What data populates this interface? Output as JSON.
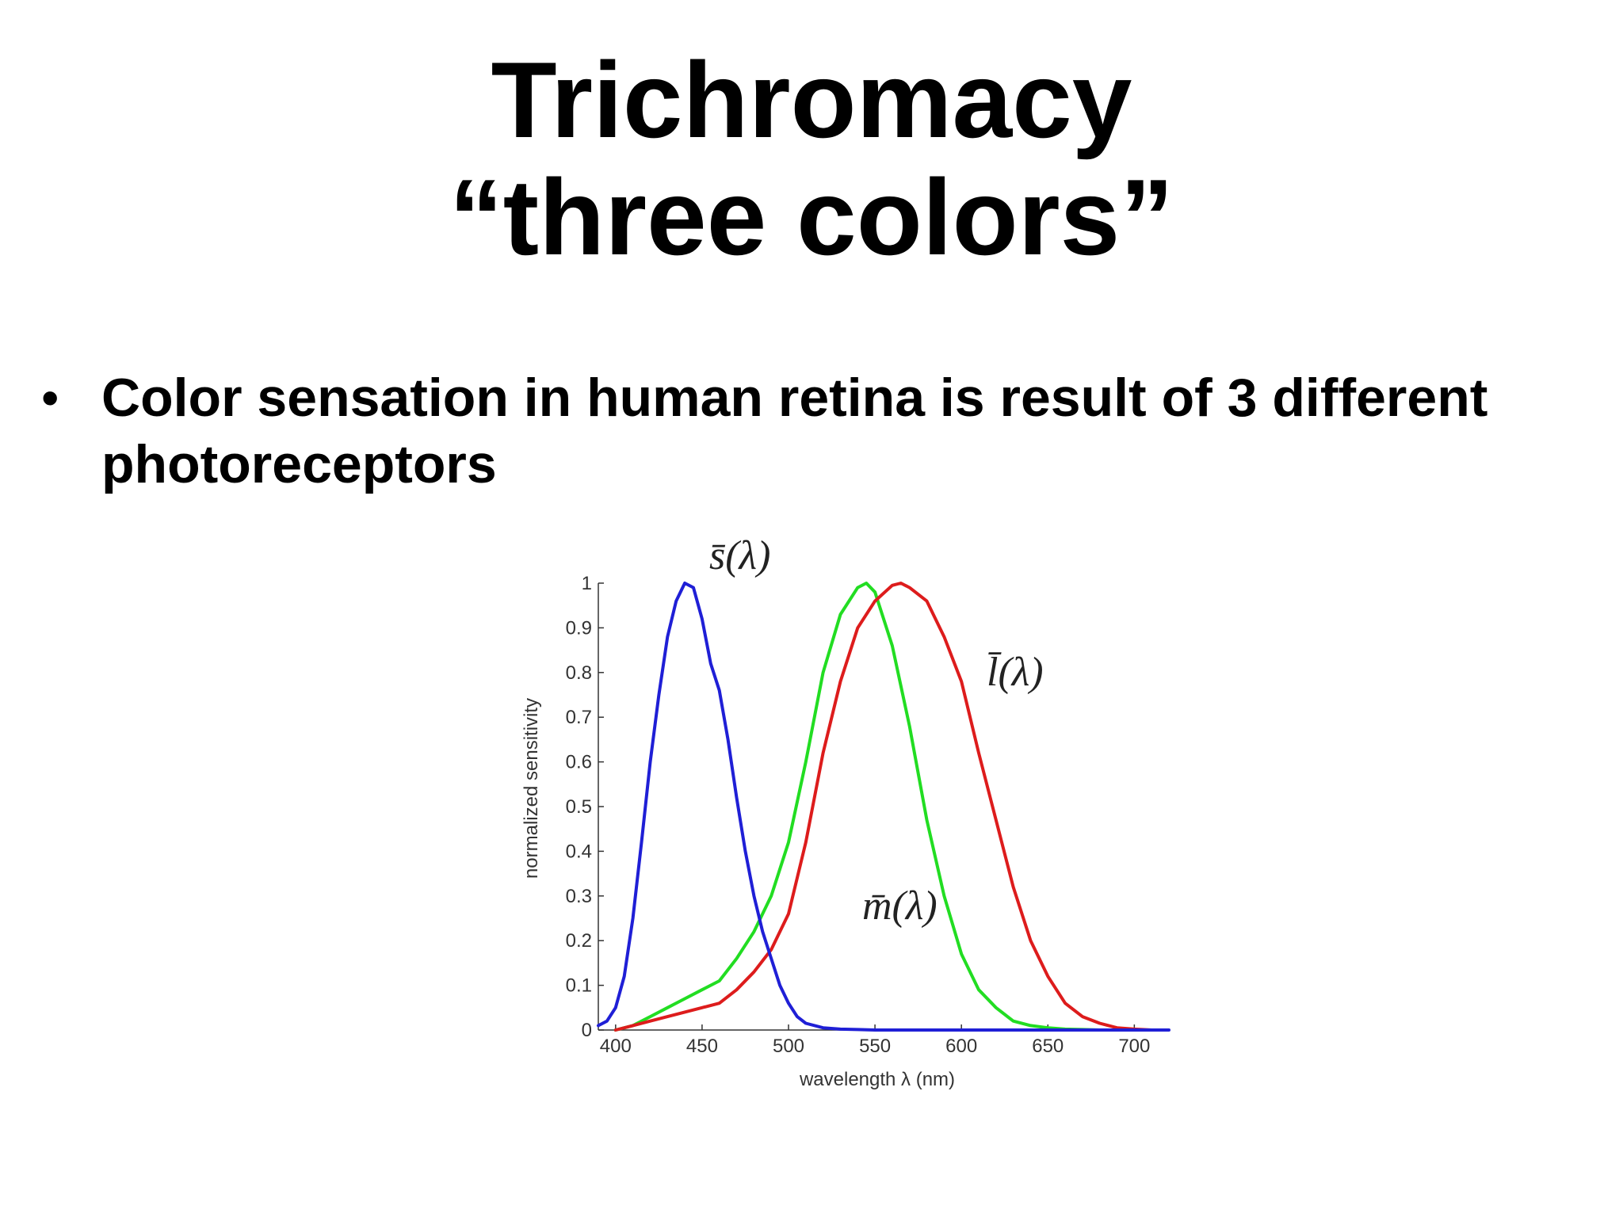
{
  "title": {
    "line1": "Trichromacy",
    "line2": "“three colors”"
  },
  "bullets": [
    {
      "marker": "•",
      "text": "Color sensation in human retina is result of 3 different photoreceptors"
    }
  ],
  "chart_data": {
    "type": "line",
    "title": "",
    "xlabel": "wavelength λ (nm)",
    "ylabel": "normalized sensitivity",
    "xlim": [
      390,
      720
    ],
    "ylim": [
      0,
      1
    ],
    "xticks": [
      400,
      450,
      500,
      550,
      600,
      650,
      700
    ],
    "yticks": [
      0,
      0.1,
      0.2,
      0.3,
      0.4,
      0.5,
      0.6,
      0.7,
      0.8,
      0.9,
      1
    ],
    "ytick_labels": [
      "0",
      "0.1",
      "0.2",
      "0.3",
      "0.4",
      "0.5",
      "0.6",
      "0.7",
      "0.8",
      "0.9",
      "1"
    ],
    "grid": false,
    "series": [
      {
        "label": "s̄(λ)",
        "color": "#1f1fd6",
        "x": [
          390,
          395,
          400,
          405,
          410,
          415,
          420,
          425,
          430,
          435,
          440,
          445,
          450,
          455,
          460,
          465,
          470,
          475,
          480,
          485,
          490,
          495,
          500,
          505,
          510,
          520,
          530,
          540,
          550,
          600,
          650,
          700,
          720
        ],
        "y": [
          0.01,
          0.02,
          0.05,
          0.12,
          0.25,
          0.42,
          0.6,
          0.75,
          0.88,
          0.96,
          1.0,
          0.99,
          0.92,
          0.82,
          0.76,
          0.65,
          0.52,
          0.4,
          0.3,
          0.22,
          0.16,
          0.1,
          0.06,
          0.03,
          0.015,
          0.005,
          0.002,
          0.001,
          0.0,
          0.0,
          0.0,
          0.0,
          0.0
        ]
      },
      {
        "label": "m̄(λ)",
        "color": "#22dd22",
        "x": [
          400,
          410,
          420,
          430,
          440,
          450,
          460,
          470,
          480,
          490,
          500,
          510,
          520,
          530,
          540,
          545,
          550,
          560,
          570,
          580,
          590,
          600,
          610,
          620,
          630,
          640,
          650,
          660,
          670,
          680,
          690,
          700
        ],
        "y": [
          0.0,
          0.01,
          0.03,
          0.05,
          0.07,
          0.09,
          0.11,
          0.16,
          0.22,
          0.3,
          0.42,
          0.6,
          0.8,
          0.93,
          0.99,
          1.0,
          0.98,
          0.86,
          0.68,
          0.47,
          0.3,
          0.17,
          0.09,
          0.05,
          0.02,
          0.01,
          0.005,
          0.002,
          0.001,
          0.0,
          0.0,
          0.0
        ]
      },
      {
        "label": "l̄(λ)",
        "color": "#dd1c1c",
        "x": [
          400,
          410,
          420,
          430,
          440,
          450,
          460,
          470,
          480,
          490,
          500,
          510,
          520,
          530,
          540,
          550,
          560,
          565,
          570,
          580,
          590,
          600,
          610,
          620,
          630,
          640,
          650,
          660,
          670,
          680,
          690,
          700,
          710
        ],
        "y": [
          0.0,
          0.01,
          0.02,
          0.03,
          0.04,
          0.05,
          0.06,
          0.09,
          0.13,
          0.18,
          0.26,
          0.42,
          0.62,
          0.78,
          0.9,
          0.96,
          0.995,
          1.0,
          0.99,
          0.96,
          0.88,
          0.78,
          0.62,
          0.47,
          0.32,
          0.2,
          0.12,
          0.06,
          0.03,
          0.015,
          0.005,
          0.002,
          0.0
        ]
      }
    ]
  }
}
